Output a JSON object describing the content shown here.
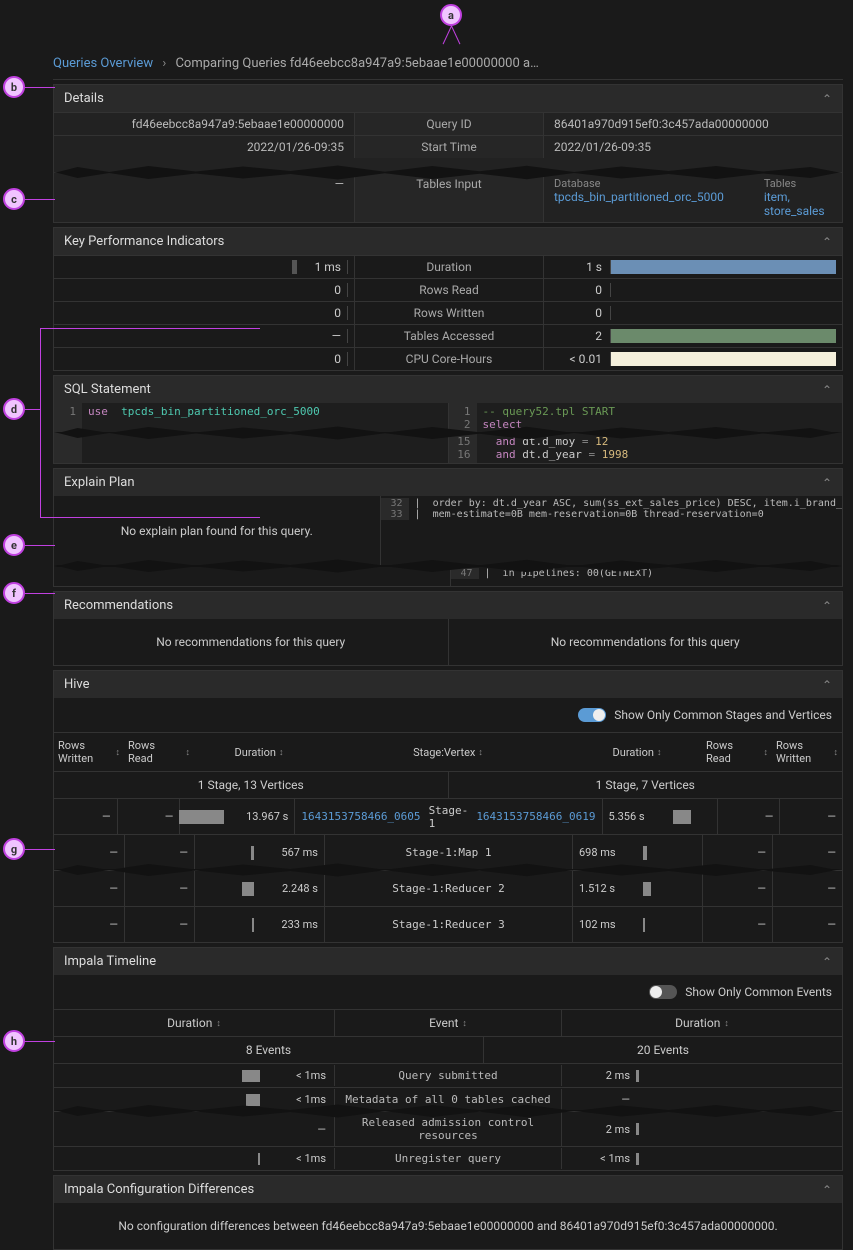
{
  "colors": {
    "bar_blue": "#6b8fb5",
    "bar_green": "#6b8a6b",
    "bar_cream": "#f5f0dc",
    "link": "#5b9bd5"
  },
  "callouts": [
    "a",
    "b",
    "c",
    "d",
    "e",
    "f",
    "g",
    "h"
  ],
  "breadcrumb": {
    "root": "Queries Overview",
    "current": "Comparing Queries fd46eebcc8a947a9:5ebaae1e00000000 a…"
  },
  "details": {
    "title": "Details",
    "rows": [
      {
        "left": "fd46eebcc8a947a9:5ebaae1e00000000",
        "mid": "Query ID",
        "right": "86401a970d915ef0:3c457ada00000000"
      },
      {
        "left": "2022/01/26-09:35",
        "mid": "Start Time",
        "right": "2022/01/26-09:35"
      }
    ],
    "tables_row": {
      "left": "—",
      "mid": "Tables Input",
      "right_db_label": "Database",
      "right_db": "tpcds_bin_partitioned_orc_5000",
      "right_tbl_label": "Tables",
      "right_tbl": "item, store_sales"
    }
  },
  "kpi": {
    "title": "Key Performance Indicators",
    "rows": [
      {
        "l": "1 ms",
        "lbar": 2,
        "m": "Duration",
        "r": "1 s",
        "rbar": 100,
        "rcolor": "#6b8fb5"
      },
      {
        "l": "0",
        "lbar": 0,
        "m": "Rows Read",
        "r": "0",
        "rbar": 0
      },
      {
        "l": "0",
        "lbar": 0,
        "m": "Rows Written",
        "r": "0",
        "rbar": 0
      },
      {
        "l": "—",
        "lbar": 0,
        "m": "Tables Accessed",
        "r": "2",
        "rbar": 100,
        "rcolor": "#6b8a6b"
      },
      {
        "l": "0",
        "lbar": 0,
        "m": "CPU Core-Hours",
        "r": "< 0.01",
        "rbar": 100,
        "rcolor": "#f5f0dc"
      }
    ]
  },
  "sql": {
    "title": "SQL Statement",
    "left": [
      {
        "n": 1,
        "html": "<span class='kw'>use</span>  <span class='kw2'>tpcds_bin_partitioned_orc_5000</span>"
      }
    ],
    "right_a": [
      {
        "n": 1,
        "html": "<span class='cmt'>-- query52.tpl START</span>"
      },
      {
        "n": 2,
        "html": "<span class='kw'>select</span>"
      }
    ],
    "right_b": [
      {
        "n": 15,
        "html": "  <span class='kw'>and</span> dt.d_moy <span class='op'>=</span> <span class='num'>12</span>"
      },
      {
        "n": 16,
        "html": "  <span class='kw'>and</span> dt.d_year <span class='op'>=</span> <span class='num'>1998</span>"
      }
    ]
  },
  "explain": {
    "title": "Explain Plan",
    "left_msg": "No explain plan found for this query.",
    "right": [
      {
        "n": 32,
        "t": "|  order by: dt.d_year ASC, sum(ss_ext_sales_price) DESC, item.i_brand_"
      },
      {
        "n": 33,
        "t": "|  mem-estimate=0B mem-reservation=0B thread-reservation=0"
      }
    ],
    "right_b": [
      {
        "n": 47,
        "t": "|  in pipelines: 00(GETNEXT)"
      }
    ]
  },
  "rec": {
    "title": "Recommendations",
    "left": "No recommendations for this query",
    "right": "No recommendations for this query"
  },
  "hive": {
    "title": "Hive",
    "toggle_label": "Show Only Common Stages and Vertices",
    "toggle_on": true,
    "cols": {
      "rw": "Rows Written",
      "rr": "Rows Read",
      "dur": "Duration",
      "sv": "Stage:Vertex"
    },
    "summary": {
      "left": "1 Stage, 13 Vertices",
      "right": "1 Stage, 7 Vertices"
    },
    "rows": [
      {
        "rw_l": "—",
        "rr_l": "—",
        "dur_l": "13.967 s",
        "bar_l": 45,
        "stage": "Stage-1",
        "link_l": "1643153758466_0605",
        "link_r": "1643153758466_0619",
        "dur_r": "5.356 s",
        "bar_r": 18,
        "rr_r": "—",
        "rw_r": "—"
      },
      {
        "rw_l": "—",
        "rr_l": "—",
        "dur_l": "567 ms",
        "bar_l": 3,
        "stage": "Stage-1:Map 1",
        "dur_r": "698 ms",
        "bar_r": 4,
        "rr_r": "—",
        "rw_r": "—"
      }
    ],
    "rows_b": [
      {
        "rw_l": "—",
        "rr_l": "—",
        "dur_l": "2.248 s",
        "bar_l": 12,
        "stage": "Stage-1:Reducer 2",
        "dur_r": "1.512 s",
        "bar_r": 8,
        "rr_r": "—",
        "rw_r": "—"
      },
      {
        "rw_l": "—",
        "rr_l": "—",
        "dur_l": "233 ms",
        "bar_l": 2,
        "stage": "Stage-1:Reducer 3",
        "dur_r": "102 ms",
        "bar_r": 2,
        "rr_r": "—",
        "rw_r": "—"
      }
    ]
  },
  "impala": {
    "title": "Impala Timeline",
    "toggle_label": "Show Only Common Events",
    "toggle_on": false,
    "cols": {
      "dur": "Duration",
      "evt": "Event"
    },
    "summary": {
      "left": "8 Events",
      "right": "20 Events"
    },
    "rows_a": [
      {
        "dur_l": "< 1ms",
        "bar_l": 18,
        "evt": "Query submitted",
        "dur_r": "2 ms",
        "bar_r": 3
      },
      {
        "dur_l": "< 1ms",
        "bar_l": 14,
        "evt": "Metadata of all 0 tables cached",
        "dur_r": "—",
        "bar_r": 0
      }
    ],
    "rows_b": [
      {
        "dur_l": "—",
        "bar_l": 0,
        "evt": "Released admission control resources",
        "dur_r": "2 ms",
        "bar_r": 3
      },
      {
        "dur_l": "< 1ms",
        "bar_l": 2,
        "evt": "Unregister query",
        "dur_r": "< 1ms",
        "bar_r": 3
      }
    ]
  },
  "config": {
    "title": "Impala Configuration Differences",
    "msg": "No configuration differences between fd46eebcc8a947a9:5ebaae1e00000000 and 86401a970d915ef0:3c457ada00000000."
  }
}
